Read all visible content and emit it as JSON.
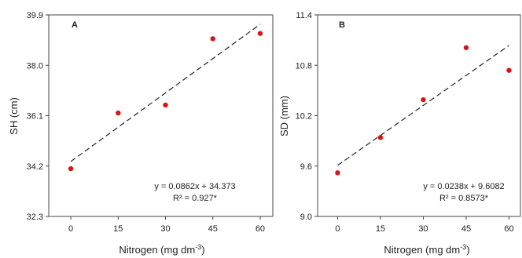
{
  "colors": {
    "point": "#d7141a",
    "axis": "#444444",
    "trend": "#222222"
  },
  "chart_data": [
    {
      "type": "scatter",
      "panel": "A",
      "xlabel": "Nitrogen (mg dm",
      "xlabel_sup": "-3",
      "xlabel_end": ")",
      "ylabel": "SH (cm)",
      "xlim": [
        -7,
        64
      ],
      "ylim": [
        32.3,
        39.9
      ],
      "xticks": [
        0,
        15,
        30,
        45,
        60
      ],
      "yticks": [
        32.3,
        34.2,
        36.1,
        38.0,
        39.9
      ],
      "yticklabels": [
        "32.3",
        "34.2",
        "36.1",
        "38.0",
        "39.9"
      ],
      "x": [
        0,
        15,
        30,
        45,
        60
      ],
      "y": [
        34.1,
        36.2,
        36.5,
        39.0,
        39.2
      ],
      "trendline": {
        "slope": 0.0862,
        "intercept": 34.373
      },
      "equation": "y = 0.0862x + 34.373",
      "r2": "R² = 0.927*"
    },
    {
      "type": "scatter",
      "panel": "B",
      "xlabel": "Nitrogen (mg dm",
      "xlabel_sup": "-3",
      "xlabel_end": ")",
      "ylabel": "SD (mm)",
      "xlim": [
        -7,
        64
      ],
      "ylim": [
        9.0,
        11.4
      ],
      "xticks": [
        0,
        15,
        30,
        45,
        60
      ],
      "yticks": [
        9.0,
        9.6,
        10.2,
        10.8,
        11.4
      ],
      "yticklabels": [
        "9.0",
        "9.6",
        "10.2",
        "10.8",
        "11.4"
      ],
      "x": [
        0,
        15,
        30,
        45,
        60
      ],
      "y": [
        9.52,
        9.94,
        10.39,
        11.01,
        10.74
      ],
      "trendline": {
        "slope": 0.0238,
        "intercept": 9.6082
      },
      "equation": "y = 0.0238x + 9.6082",
      "r2": "R² = 0.8573*"
    }
  ]
}
